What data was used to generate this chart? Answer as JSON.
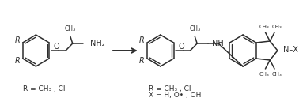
{
  "background_color": "#ffffff",
  "line_color": "#2d2d2d",
  "label_left": "R = CH₃ , Cl",
  "label_right_line1": "R = CH₃ , Cl",
  "label_right_line2": "X = H, O• , OH",
  "figsize": [
    3.78,
    1.29
  ],
  "dpi": 100,
  "lw": 1.1
}
